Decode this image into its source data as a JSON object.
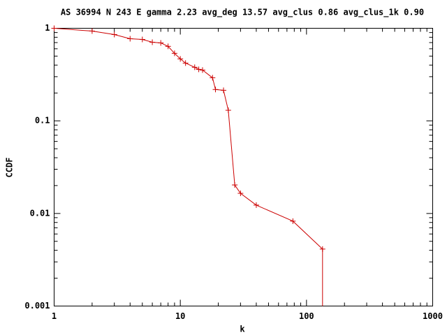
{
  "chart_data": {
    "type": "line",
    "title": "AS 36994 N 243 E gamma 2.23 avg_deg 13.57 avg_clus 0.86 avg_clus_1k 0.90",
    "x_label": "k",
    "y_label": "CCDF",
    "x": [
      1,
      2,
      3,
      4,
      5,
      6,
      7,
      8,
      9,
      10,
      11,
      13,
      14,
      15,
      18,
      19,
      22,
      24,
      27,
      30,
      40,
      78,
      134
    ],
    "series": [
      {
        "name": "CCDF",
        "color": "#cc0000",
        "values": [
          1.0,
          0.933,
          0.856,
          0.771,
          0.758,
          0.707,
          0.695,
          0.638,
          0.536,
          0.467,
          0.421,
          0.379,
          0.36,
          0.354,
          0.292,
          0.218,
          0.214,
          0.13,
          0.0203,
          0.0165,
          0.0123,
          0.00826,
          0.00412
        ]
      }
    ],
    "xlim": [
      1,
      1000
    ],
    "ylim": [
      0.001,
      1
    ],
    "xticks": [
      1,
      10,
      100,
      1000
    ],
    "yticks": [
      0.001,
      0.01,
      0.1,
      1
    ],
    "xscale": "log",
    "yscale": "log"
  }
}
